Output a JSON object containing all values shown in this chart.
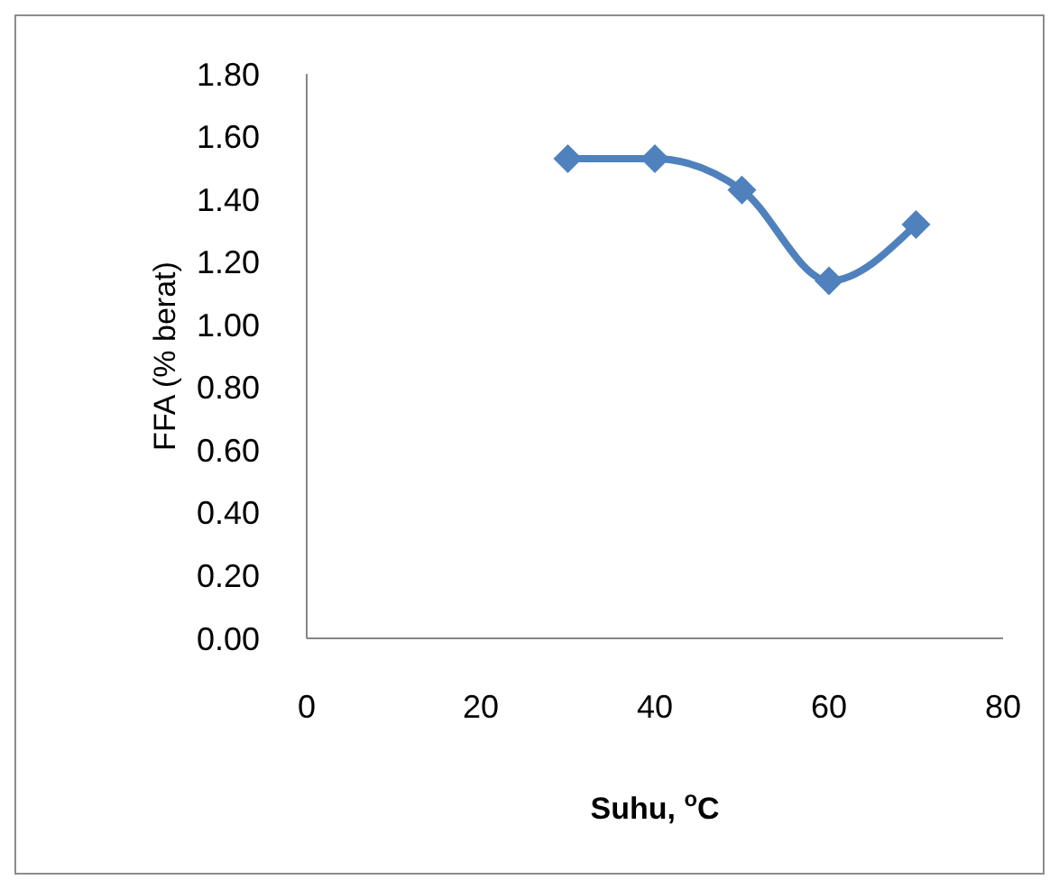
{
  "chart_data": {
    "type": "line",
    "xlabel": "Suhu, $^{o}$C",
    "ylabel": "FFA (% berat)",
    "x": [
      30,
      40,
      50,
      60,
      70
    ],
    "series": [
      {
        "color": "#4f81bd",
        "values": [
          1.53,
          1.53,
          1.43,
          1.14,
          1.32
        ]
      }
    ],
    "xlim": [
      0,
      80
    ],
    "xticks": [
      0,
      20,
      40,
      60,
      80
    ],
    "ylim": [
      0,
      1.8
    ],
    "yticks": [
      {
        "value": 0,
        "label": "0.00"
      },
      {
        "value": 0.2,
        "label": "0.20"
      },
      {
        "value": 0.4,
        "label": "0.40"
      },
      {
        "value": 0.6,
        "label": "0.60"
      },
      {
        "value": 0.8,
        "label": "0.80"
      },
      {
        "value": 1,
        "label": "1.00"
      },
      {
        "value": 1.2,
        "label": "1.20"
      },
      {
        "value": 1.4,
        "label": "1.40"
      },
      {
        "value": 1.6,
        "label": "1.60"
      },
      {
        "value": 1.8,
        "label": "1.80"
      }
    ],
    "grid": false,
    "marker": "diamond",
    "line_style": "solid"
  }
}
